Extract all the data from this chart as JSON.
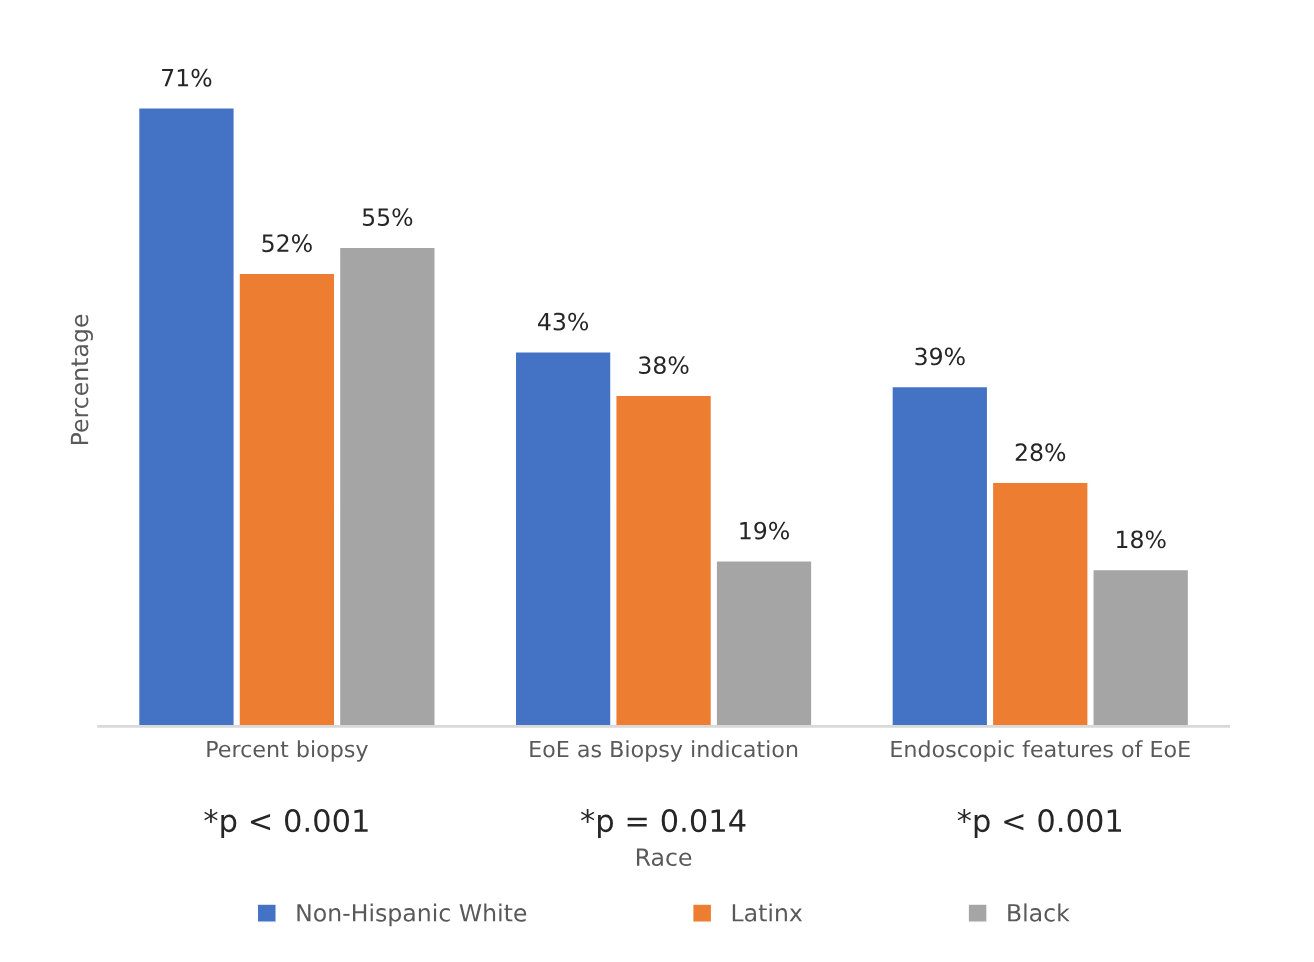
{
  "chart_data": {
    "type": "bar",
    "xlabel": "Race",
    "ylabel": "Percentage",
    "categories": [
      "Percent biopsy",
      "EoE as Biopsy indication",
      "Endoscopic features of EoE"
    ],
    "series": [
      {
        "name": "Non-Hispanic White",
        "color": "#4472c4",
        "values": [
          71,
          43,
          39
        ],
        "value_labels": [
          "71%",
          "43%",
          "39%"
        ]
      },
      {
        "name": "Latinx",
        "color": "#ed7d31",
        "values": [
          52,
          38,
          28
        ],
        "value_labels": [
          "52%",
          "38%",
          "28%"
        ]
      },
      {
        "name": "Black",
        "color": "#a5a5a5",
        "values": [
          55,
          19,
          18
        ],
        "value_labels": [
          "55%",
          "19%",
          "18%"
        ]
      }
    ],
    "annotations": [
      "*p < 0.001",
      "*p = 0.014",
      "*p < 0.001"
    ],
    "legend": "bottom",
    "grid": false
  }
}
